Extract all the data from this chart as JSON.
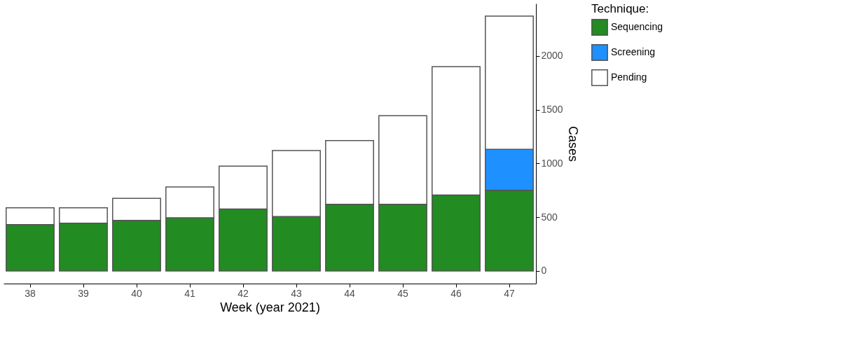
{
  "chart_data": {
    "type": "bar",
    "stacked": true,
    "xlabel": "Week (year 2021)",
    "ylabel": "Cases",
    "legend_title": "Technique:",
    "categories": [
      "38",
      "39",
      "40",
      "41",
      "42",
      "43",
      "44",
      "45",
      "46",
      "47"
    ],
    "series": [
      {
        "name": "Sequencing",
        "color": "#228b22",
        "values": [
          431,
          444,
          469,
          494,
          575,
          506,
          619,
          619,
          706,
          750
        ]
      },
      {
        "name": "Screening",
        "color": "#1e90ff",
        "values": [
          null,
          null,
          null,
          null,
          null,
          null,
          null,
          null,
          null,
          381
        ]
      },
      {
        "name": "Pending",
        "color": "#ffffff",
        "values": [
          156,
          143,
          206,
          287,
          400,
          613,
          593,
          825,
          1194,
          1238
        ]
      }
    ],
    "ylim": [
      -118,
      2487
    ],
    "yticks": [
      0,
      500,
      1000,
      1500,
      2000
    ],
    "grid": false,
    "legend": "right"
  }
}
